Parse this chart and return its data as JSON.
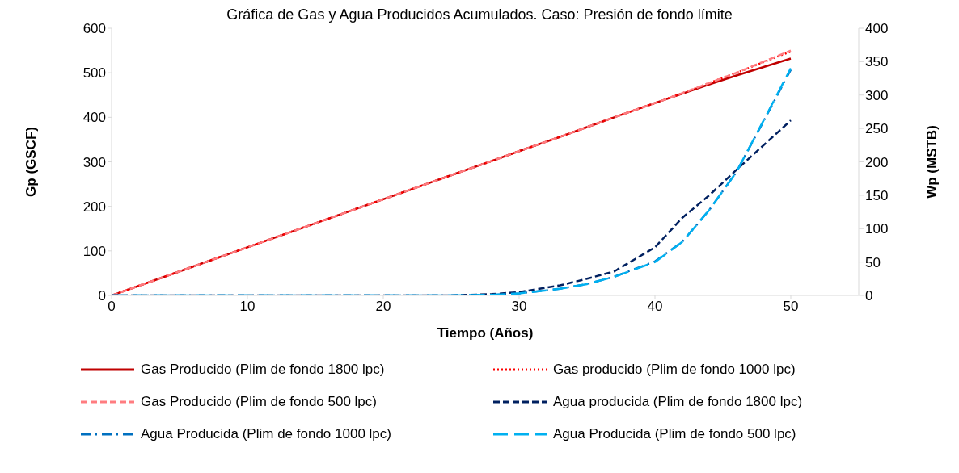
{
  "chart_data": {
    "type": "line",
    "title": "Gráfica de Gas y Agua Producidos Acumulados. Caso: Presión de fondo límite",
    "xlabel": "Tiempo (Años)",
    "ylabel": "Gp (GSCF)",
    "y2label": "Wp (MSTB)",
    "x": [
      0,
      5,
      10,
      15,
      20,
      25,
      28,
      30,
      33,
      35,
      37,
      40,
      42,
      44,
      46,
      48,
      50
    ],
    "xlim": [
      0,
      55
    ],
    "xticks": [
      0,
      10,
      20,
      30,
      40,
      50
    ],
    "ylim": [
      0,
      600
    ],
    "yticks": [
      0,
      100,
      200,
      300,
      400,
      500,
      600
    ],
    "y2lim": [
      0,
      400
    ],
    "y2ticks": [
      0,
      50,
      100,
      150,
      200,
      250,
      300,
      350,
      400
    ],
    "grid": false,
    "legend": "bottom",
    "marker": "none",
    "series": [
      {
        "name": "Gas Producido (Plim de fondo 1800 lpc)",
        "color": "#c00000",
        "line_style": "solid",
        "values": [
          0,
          54,
          108,
          162,
          216,
          270,
          302,
          324,
          356,
          378,
          400,
          432,
          453,
          474,
          494,
          513,
          532
        ]
      },
      {
        "name": "Gas producido (Plim de fondo 1000 lpc)",
        "color": "#ff0000",
        "line_style": "dotted",
        "values": [
          0,
          54,
          108,
          162,
          216,
          270,
          302,
          324,
          356,
          378,
          400,
          432,
          454,
          477,
          500,
          524,
          548
        ]
      },
      {
        "name": "Gas Producido (Plim de fondo 500 lpc)",
        "color": "#ff7c80",
        "line_style": "dashed",
        "values": [
          0,
          54,
          108,
          162,
          216,
          270,
          302,
          324,
          356,
          378,
          400,
          432,
          454,
          477,
          500,
          525,
          550
        ]
      },
      {
        "name": "Agua producida (Plim de fondo 1800 lpc)",
        "color": "#002060",
        "line_style": "dashed",
        "axis": "y2",
        "values": [
          0,
          0,
          0,
          0,
          0,
          0,
          2,
          5,
          15,
          25,
          36,
          72,
          116,
          150,
          188,
          225,
          262
        ]
      },
      {
        "name": "Agua Producida (Plim de fondo 1000 lpc)",
        "color": "#0070c0",
        "line_style": "dashdot",
        "axis": "y2",
        "values": [
          0,
          0,
          0,
          0,
          0,
          0,
          1,
          3,
          10,
          17,
          28,
          51,
          80,
          128,
          185,
          261,
          338
        ]
      },
      {
        "name": "Agua Producida (Plim de fondo 500 lpc)",
        "color": "#00b0f0",
        "line_style": "longdash",
        "axis": "y2",
        "values": [
          0,
          0,
          0,
          0,
          0,
          0,
          1,
          3,
          10,
          17,
          28,
          50,
          80,
          128,
          185,
          262,
          340
        ]
      }
    ]
  }
}
